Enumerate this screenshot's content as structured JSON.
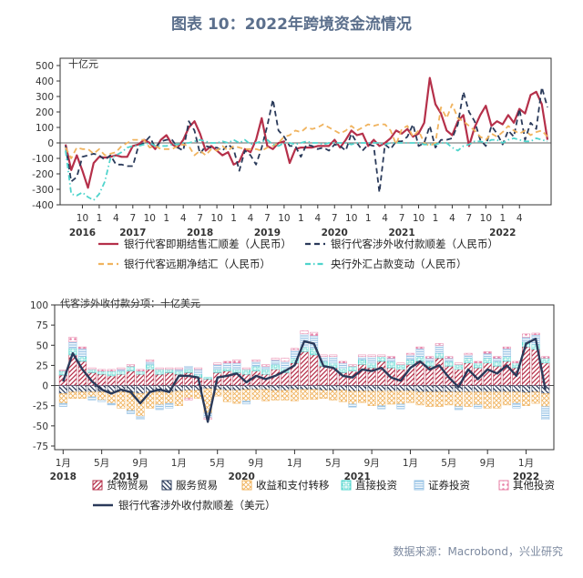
{
  "title": "图表 10：2022年跨境资金流情况",
  "source": "数据来源：Macrobond，兴业研究",
  "colors": {
    "red": "#b5304a",
    "navy": "#2a3a5a",
    "orange": "#f0b35e",
    "teal": "#4fd4cc",
    "lightblue": "#9ac4e6",
    "pink": "#e77fa6",
    "axis": "#555555"
  },
  "chart_data": [
    {
      "type": "line",
      "unit_label": "十亿元",
      "ylim": [
        -400,
        500
      ],
      "yticks": [
        -400,
        -300,
        -200,
        -100,
        0,
        100,
        200,
        300,
        400,
        500
      ],
      "x_tick_labels": [
        {
          "m": 3,
          "label": "10"
        },
        {
          "m": 6,
          "label": "1"
        },
        {
          "m": 9,
          "label": "4"
        },
        {
          "m": 12,
          "label": "7"
        },
        {
          "m": 15,
          "label": "10"
        },
        {
          "m": 18,
          "label": "1"
        },
        {
          "m": 21,
          "label": "4"
        },
        {
          "m": 24,
          "label": "7"
        },
        {
          "m": 27,
          "label": "10"
        },
        {
          "m": 30,
          "label": "1"
        },
        {
          "m": 33,
          "label": "4"
        },
        {
          "m": 36,
          "label": "7"
        },
        {
          "m": 39,
          "label": "10"
        },
        {
          "m": 42,
          "label": "1"
        },
        {
          "m": 45,
          "label": "4"
        },
        {
          "m": 48,
          "label": "7"
        },
        {
          "m": 51,
          "label": "10"
        },
        {
          "m": 54,
          "label": "1"
        },
        {
          "m": 57,
          "label": "4"
        },
        {
          "m": 60,
          "label": "7"
        },
        {
          "m": 63,
          "label": "10"
        },
        {
          "m": 66,
          "label": "1"
        },
        {
          "m": 69,
          "label": "4"
        },
        {
          "m": 72,
          "label": "7"
        },
        {
          "m": 75,
          "label": "10"
        },
        {
          "m": 78,
          "label": "1"
        },
        {
          "m": 81,
          "label": "4"
        }
      ],
      "year_labels": [
        {
          "m": 3,
          "label": "2016"
        },
        {
          "m": 12,
          "label": "2017"
        },
        {
          "m": 24,
          "label": "2018"
        },
        {
          "m": 36,
          "label": "2019"
        },
        {
          "m": 48,
          "label": "2020"
        },
        {
          "m": 60,
          "label": "2021"
        },
        {
          "m": 78,
          "label": "2022"
        }
      ],
      "series": [
        {
          "name": "银行代客即期结售汇顺差（人民币）",
          "style": "solid",
          "color": "#b5304a",
          "values": [
            -10,
            -175,
            -80,
            -180,
            -290,
            -130,
            -90,
            -95,
            -90,
            -80,
            -90,
            -90,
            -20,
            -10,
            20,
            0,
            -40,
            20,
            50,
            -10,
            -30,
            20,
            100,
            140,
            60,
            -50,
            -20,
            -50,
            -80,
            -60,
            -140,
            -120,
            -40,
            -60,
            20,
            160,
            -20,
            -40,
            0,
            10,
            -130,
            -40,
            -30,
            -30,
            -30,
            -20,
            -20,
            -20,
            20,
            -30,
            20,
            80,
            50,
            60,
            -20,
            20,
            -20,
            0,
            30,
            80,
            60,
            90,
            40,
            60,
            130,
            420,
            250,
            190,
            80,
            50,
            140,
            180,
            -20,
            100,
            180,
            240,
            110,
            140,
            120,
            180,
            130,
            220,
            190,
            310,
            330,
            250,
            20
          ]
        },
        {
          "name": "银行代客涉外收付款顺差（人民币）",
          "style": "dash",
          "color": "#2a3a5a",
          "values": [
            -20,
            -250,
            -220,
            -90,
            -80,
            -70,
            -80,
            -110,
            -80,
            -140,
            -140,
            -150,
            -150,
            -20,
            0,
            40,
            -30,
            10,
            20,
            20,
            -30,
            -50,
            140,
            80,
            -70,
            -20,
            -30,
            -30,
            -50,
            -10,
            -40,
            -180,
            -50,
            -80,
            -140,
            -30,
            110,
            280,
            80,
            40,
            -20,
            -20,
            -90,
            -10,
            -20,
            -40,
            -30,
            -50,
            -10,
            -20,
            -50,
            60,
            0,
            -50,
            -10,
            -20,
            -320,
            -10,
            -40,
            10,
            10,
            40,
            120,
            -20,
            0,
            110,
            -30,
            20,
            20,
            30,
            120,
            330,
            200,
            140,
            20,
            -20,
            110,
            60,
            -10,
            80,
            40,
            220,
            20,
            130,
            90,
            360,
            230
          ]
        },
        {
          "name": "银行代客远期净结汇（人民币）",
          "style": "dash",
          "color": "#f0b35e",
          "values": [
            -30,
            -100,
            -30,
            -40,
            -40,
            -70,
            -40,
            -80,
            -70,
            -60,
            -20,
            0,
            20,
            20,
            20,
            -30,
            -20,
            -40,
            -40,
            -40,
            -20,
            -10,
            -20,
            -80,
            -50,
            -80,
            -40,
            -50,
            -20,
            -50,
            -20,
            -30,
            -40,
            -40,
            -40,
            -50,
            -30,
            -20,
            0,
            40,
            50,
            80,
            70,
            100,
            90,
            100,
            120,
            100,
            80,
            60,
            80,
            110,
            80,
            100,
            120,
            110,
            120,
            120,
            80,
            -10,
            90,
            110,
            40,
            80,
            0,
            -20,
            0,
            230,
            160,
            250,
            160,
            140,
            110,
            80,
            40,
            20,
            60,
            40,
            70,
            110,
            80,
            60,
            80,
            50,
            70,
            80,
            40
          ]
        },
        {
          "name": "央行外汇占款变动（人民币）",
          "style": "dashdot",
          "color": "#4fd4cc",
          "values": [
            -50,
            -330,
            -340,
            -320,
            -350,
            -370,
            -330,
            -250,
            -100,
            -80,
            -60,
            -30,
            -20,
            -20,
            -10,
            0,
            -20,
            -20,
            -20,
            -10,
            -10,
            0,
            0,
            10,
            20,
            10,
            0,
            0,
            10,
            0,
            20,
            0,
            20,
            -10,
            0,
            10,
            20,
            -10,
            -20,
            0,
            0,
            -10,
            0,
            10,
            0,
            0,
            -10,
            0,
            0,
            0,
            0,
            -10,
            0,
            0,
            0,
            0,
            0,
            -10,
            0,
            0,
            0,
            0,
            0,
            0,
            -10,
            -10,
            -10,
            0,
            0,
            -30,
            -50,
            -20,
            -10,
            10,
            10,
            0,
            20,
            20,
            0,
            20,
            30,
            20,
            10,
            10,
            30,
            20,
            10
          ]
        }
      ]
    },
    {
      "type": "bar",
      "stacked": true,
      "unit_label": "代客涉外收付款分项：十亿美元",
      "ylim": [
        -75,
        100
      ],
      "yticks": [
        -75,
        -50,
        -25,
        0,
        25,
        50,
        75,
        100
      ],
      "x_tick_labels": [
        {
          "i": 0,
          "label": "1月"
        },
        {
          "i": 4,
          "label": "5月"
        },
        {
          "i": 8,
          "label": "9月"
        },
        {
          "i": 12,
          "label": "1月"
        },
        {
          "i": 16,
          "label": "5月"
        },
        {
          "i": 20,
          "label": "9月"
        },
        {
          "i": 24,
          "label": "1月"
        },
        {
          "i": 28,
          "label": "5月"
        },
        {
          "i": 32,
          "label": "9月"
        },
        {
          "i": 36,
          "label": "1月"
        },
        {
          "i": 40,
          "label": "5月"
        },
        {
          "i": 44,
          "label": "9月"
        },
        {
          "i": 48,
          "label": "1月"
        }
      ],
      "year_labels": [
        {
          "i": 0,
          "label": "2018"
        },
        {
          "i": 6.5,
          "label": "2019"
        },
        {
          "i": 18.5,
          "label": "2020"
        },
        {
          "i": 30.5,
          "label": "2021"
        },
        {
          "i": 48,
          "label": "2022"
        }
      ],
      "series": [
        {
          "name": "货物贸易",
          "color": "#b5304a",
          "pattern": "diag",
          "values": [
            13,
            38,
            30,
            16,
            14,
            12,
            14,
            18,
            14,
            20,
            14,
            16,
            14,
            16,
            10,
            8,
            16,
            18,
            16,
            14,
            18,
            14,
            20,
            16,
            28,
            42,
            38,
            24,
            22,
            16,
            18,
            26,
            22,
            30,
            22,
            20,
            26,
            30,
            24,
            34,
            24,
            20,
            28,
            22,
            28,
            24,
            30,
            22,
            48,
            45,
            28
          ]
        },
        {
          "name": "服务贸易",
          "color": "#2a3a5a",
          "pattern": "back",
          "values": [
            -10,
            -8,
            -8,
            -8,
            -8,
            -8,
            -8,
            -9,
            -10,
            -8,
            -8,
            -8,
            -7,
            -6,
            -6,
            -4,
            -5,
            -6,
            -6,
            -5,
            -5,
            -5,
            -6,
            -6,
            -5,
            -5,
            -5,
            -6,
            -6,
            -6,
            -7,
            -7,
            -7,
            -7,
            -7,
            -7,
            -7,
            -8,
            -8,
            -8,
            -8,
            -8,
            -8,
            -8,
            -8,
            -8,
            -8,
            -8,
            -9,
            -8,
            -10
          ]
        },
        {
          "name": "收益和支付转移",
          "color": "#f0b35e",
          "pattern": "cross",
          "values": [
            -12,
            -8,
            -8,
            -6,
            -10,
            -14,
            -20,
            -22,
            -28,
            -20,
            -16,
            -14,
            -18,
            -10,
            -10,
            -30,
            -8,
            -14,
            -16,
            -14,
            -12,
            -14,
            -12,
            -12,
            -14,
            -12,
            -12,
            -10,
            -12,
            -14,
            -16,
            -14,
            -18,
            -18,
            -16,
            -16,
            -14,
            -16,
            -18,
            -18,
            -16,
            -18,
            -18,
            -16,
            -20,
            -20,
            -16,
            -14,
            -16,
            -14,
            -16
          ]
        },
        {
          "name": "直接投资",
          "color": "#4fd4cc",
          "pattern": "box",
          "values": [
            6,
            8,
            6,
            4,
            4,
            6,
            4,
            6,
            4,
            6,
            6,
            4,
            4,
            4,
            4,
            2,
            4,
            4,
            4,
            6,
            6,
            6,
            6,
            6,
            6,
            6,
            8,
            6,
            6,
            6,
            6,
            6,
            6,
            6,
            8,
            6,
            6,
            6,
            6,
            6,
            6,
            6,
            6,
            6,
            6,
            6,
            6,
            6,
            6,
            6,
            6
          ]
        },
        {
          "name": "证券投资",
          "color": "#9ac4e6",
          "pattern": "horiz",
          "values": [
            -4,
            8,
            10,
            -4,
            -2,
            -2,
            2,
            -4,
            -4,
            4,
            -6,
            -6,
            2,
            4,
            6,
            -6,
            6,
            6,
            8,
            -4,
            6,
            4,
            6,
            8,
            10,
            16,
            16,
            6,
            8,
            6,
            -4,
            4,
            8,
            -4,
            4,
            -6,
            6,
            10,
            4,
            10,
            4,
            -4,
            4,
            -4,
            6,
            4,
            10,
            -6,
            6,
            12,
            -16
          ]
        },
        {
          "name": "其他投资",
          "color": "#e77fa6",
          "pattern": "dots",
          "values": [
            0,
            6,
            2,
            2,
            2,
            2,
            2,
            2,
            2,
            2,
            2,
            2,
            2,
            -2,
            2,
            -2,
            2,
            2,
            4,
            2,
            2,
            2,
            2,
            4,
            2,
            4,
            4,
            2,
            2,
            2,
            2,
            2,
            2,
            2,
            2,
            2,
            2,
            2,
            2,
            2,
            2,
            2,
            2,
            2,
            2,
            2,
            2,
            2,
            4,
            2,
            2
          ]
        },
        {
          "name": "银行代客涉外收付款顺差（美元）",
          "type": "line",
          "color": "#2a3a5a",
          "values": [
            5,
            40,
            20,
            5,
            -5,
            -10,
            -5,
            -8,
            -22,
            -8,
            -5,
            -8,
            12,
            12,
            10,
            -45,
            10,
            12,
            15,
            4,
            12,
            8,
            12,
            18,
            25,
            55,
            52,
            24,
            22,
            12,
            10,
            20,
            18,
            22,
            10,
            6,
            22,
            30,
            20,
            25,
            10,
            -2,
            20,
            8,
            20,
            15,
            25,
            12,
            52,
            58,
            -5
          ]
        }
      ]
    }
  ],
  "legend1": [
    {
      "label": "银行代客即期结售汇顺差（人民币）",
      "style": "solid",
      "color": "#b5304a"
    },
    {
      "label": "银行代客涉外收付款顺差（人民币）",
      "style": "dash",
      "color": "#2a3a5a"
    },
    {
      "label": "银行代客远期净结汇（人民币）",
      "style": "dash",
      "color": "#f0b35e"
    },
    {
      "label": "央行外汇占款变动（人民币）",
      "style": "dashdot",
      "color": "#4fd4cc"
    }
  ],
  "legend2": [
    {
      "label": "货物贸易",
      "color": "#b5304a",
      "pattern": "diag"
    },
    {
      "label": "服务贸易",
      "color": "#2a3a5a",
      "pattern": "back"
    },
    {
      "label": "收益和支付转移",
      "color": "#f0b35e",
      "pattern": "cross"
    },
    {
      "label": "直接投资",
      "color": "#4fd4cc",
      "pattern": "box"
    },
    {
      "label": "证券投资",
      "color": "#9ac4e6",
      "pattern": "horiz"
    },
    {
      "label": "其他投资",
      "color": "#e77fa6",
      "pattern": "dots"
    }
  ],
  "legend2_line": {
    "label": "银行代客涉外收付款顺差（美元）",
    "color": "#2a3a5a"
  }
}
